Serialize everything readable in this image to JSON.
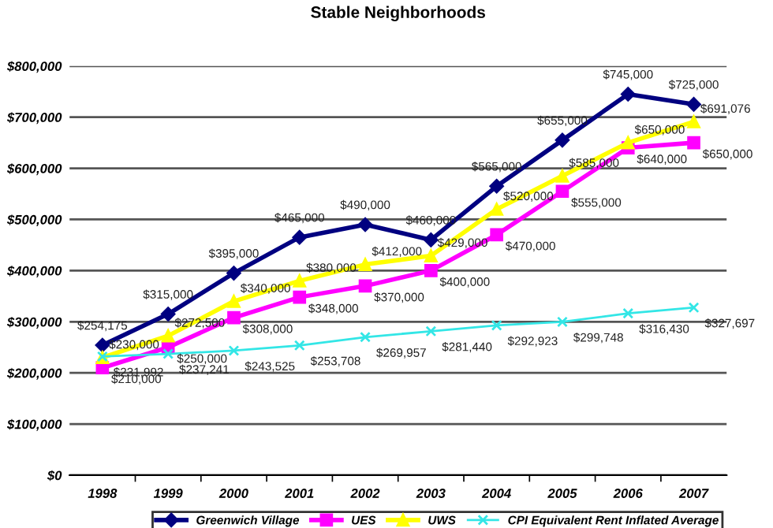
{
  "chart_data": {
    "type": "line",
    "title": "Stable Neighborhoods",
    "categories": [
      "1998",
      "1999",
      "2000",
      "2001",
      "2002",
      "2003",
      "2004",
      "2005",
      "2006",
      "2007"
    ],
    "series": [
      {
        "name": "Greenwich Village",
        "color": "#000080",
        "marker": "diamond",
        "values": [
          254175,
          315000,
          395000,
          465000,
          490000,
          460000,
          565000,
          655000,
          745000,
          725000
        ],
        "value_labels": [
          "$254,175",
          "$315,000",
          "$395,000",
          "$465,000",
          "$490,000",
          "$460,000",
          "$565,000",
          "$655,000",
          "$745,000",
          "$725,000"
        ]
      },
      {
        "name": "UES",
        "color": "#ff00ff",
        "marker": "square",
        "values": [
          210000,
          250000,
          308000,
          348000,
          370000,
          400000,
          470000,
          555000,
          640000,
          650000
        ],
        "value_labels": [
          "$210,000",
          "$250,000",
          "$308,000",
          "$348,000",
          "$370,000",
          "$400,000",
          "$470,000",
          "$555,000",
          "$640,000",
          "$650,000"
        ]
      },
      {
        "name": "UWS",
        "color": "#ffff00",
        "marker": "triangle",
        "values": [
          230000,
          272500,
          340000,
          380000,
          412000,
          429000,
          520000,
          585000,
          650000,
          691076
        ],
        "value_labels": [
          "$230,000",
          "$272,500",
          "$340,000",
          "$380,000",
          "$412,000",
          "$429,000",
          "$520,000",
          "$585,000",
          "$650,000",
          "$691,076"
        ]
      },
      {
        "name": "CPI Equivalent Rent Inflated Average",
        "color": "#33e6e6",
        "marker": "cross",
        "values": [
          231992,
          237241,
          243525,
          253708,
          269957,
          281440,
          292923,
          299748,
          316430,
          327697
        ],
        "value_labels": [
          "$231,992",
          "$237,241",
          "$243,525",
          "$253,708",
          "$269,957",
          "$281,440",
          "$292,923",
          "$299,748",
          "$316,430",
          "$327,697"
        ]
      }
    ],
    "ylim": [
      0,
      800000
    ],
    "yticks": [
      {
        "value": 0,
        "label": "$0"
      },
      {
        "value": 100000,
        "label": "$100,000"
      },
      {
        "value": 200000,
        "label": "$200,000"
      },
      {
        "value": 300000,
        "label": "$300,000"
      },
      {
        "value": 400000,
        "label": "$400,000"
      },
      {
        "value": 500000,
        "label": "$500,000"
      },
      {
        "value": 600000,
        "label": "$600,000"
      },
      {
        "value": 700000,
        "label": "$700,000"
      },
      {
        "value": 800000,
        "label": "$800,000"
      }
    ],
    "grid": "y",
    "legend": "bottom",
    "line_style": "solid"
  }
}
